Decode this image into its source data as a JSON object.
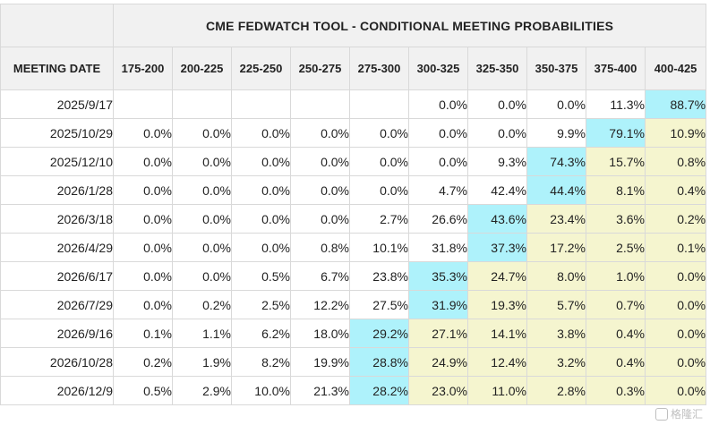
{
  "chart_data": {
    "type": "table",
    "title": "CME FEDWATCH TOOL - CONDITIONAL MEETING PROBABILITIES",
    "row_header_label": "MEETING DATE",
    "columns": [
      "175-200",
      "200-225",
      "225-250",
      "250-275",
      "275-300",
      "300-325",
      "325-350",
      "350-375",
      "375-400",
      "400-425"
    ],
    "rows": [
      {
        "date": "2025/9/17",
        "values": [
          "",
          "",
          "",
          "",
          "",
          "0.0%",
          "0.0%",
          "0.0%",
          "11.3%",
          "88.7%"
        ]
      },
      {
        "date": "2025/10/29",
        "values": [
          "0.0%",
          "0.0%",
          "0.0%",
          "0.0%",
          "0.0%",
          "0.0%",
          "0.0%",
          "9.9%",
          "79.1%",
          "10.9%"
        ]
      },
      {
        "date": "2025/12/10",
        "values": [
          "0.0%",
          "0.0%",
          "0.0%",
          "0.0%",
          "0.0%",
          "0.0%",
          "9.3%",
          "74.3%",
          "15.7%",
          "0.8%"
        ]
      },
      {
        "date": "2026/1/28",
        "values": [
          "0.0%",
          "0.0%",
          "0.0%",
          "0.0%",
          "0.0%",
          "4.7%",
          "42.4%",
          "44.4%",
          "8.1%",
          "0.4%"
        ]
      },
      {
        "date": "2026/3/18",
        "values": [
          "0.0%",
          "0.0%",
          "0.0%",
          "0.0%",
          "2.7%",
          "26.6%",
          "43.6%",
          "23.4%",
          "3.6%",
          "0.2%"
        ]
      },
      {
        "date": "2026/4/29",
        "values": [
          "0.0%",
          "0.0%",
          "0.0%",
          "0.8%",
          "10.1%",
          "31.8%",
          "37.3%",
          "17.2%",
          "2.5%",
          "0.1%"
        ]
      },
      {
        "date": "2026/6/17",
        "values": [
          "0.0%",
          "0.0%",
          "0.5%",
          "6.7%",
          "23.8%",
          "35.3%",
          "24.7%",
          "8.0%",
          "1.0%",
          "0.0%"
        ]
      },
      {
        "date": "2026/7/29",
        "values": [
          "0.0%",
          "0.2%",
          "2.5%",
          "12.2%",
          "27.5%",
          "31.9%",
          "19.3%",
          "5.7%",
          "0.7%",
          "0.0%"
        ]
      },
      {
        "date": "2026/9/16",
        "values": [
          "0.1%",
          "1.1%",
          "6.2%",
          "18.0%",
          "29.2%",
          "27.1%",
          "14.1%",
          "3.8%",
          "0.4%",
          "0.0%"
        ]
      },
      {
        "date": "2026/10/28",
        "values": [
          "0.2%",
          "1.9%",
          "8.2%",
          "19.9%",
          "28.8%",
          "24.9%",
          "12.4%",
          "3.2%",
          "0.4%",
          "0.0%"
        ]
      },
      {
        "date": "2026/12/9",
        "values": [
          "0.5%",
          "2.9%",
          "10.0%",
          "21.3%",
          "28.2%",
          "23.0%",
          "11.0%",
          "2.8%",
          "0.3%",
          "0.0%"
        ]
      }
    ],
    "highlight_cyan_col": [
      9,
      8,
      7,
      7,
      6,
      6,
      5,
      5,
      4,
      4,
      4
    ],
    "colors": {
      "cyan": "#aef2fb",
      "yellow": "#f5f5cf",
      "header_bg": "#f1f1f1"
    }
  },
  "watermark": {
    "text": "格隆汇",
    "icon": "watermark-logo-icon"
  }
}
